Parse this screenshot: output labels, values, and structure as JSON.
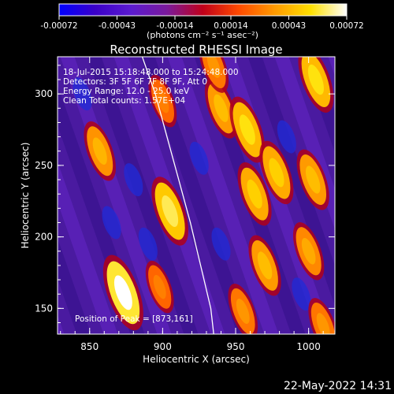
{
  "chart_data": {
    "type": "heatmap",
    "title": "Reconstructed RHESSI Image",
    "xlabel": "Heliocentric X (arcsec)",
    "ylabel": "Heliocentric Y (arcsec)",
    "xlim": [
      828,
      1018
    ],
    "ylim": [
      132,
      326
    ],
    "x_ticks": [
      850,
      900,
      950,
      1000
    ],
    "y_ticks": [
      150,
      200,
      250,
      300
    ],
    "x_tick_labels": [
      "850",
      "900",
      "950",
      "1000"
    ],
    "y_tick_labels": [
      "150",
      "200",
      "250",
      "300"
    ],
    "colorbar": {
      "ticks": [
        -0.00072,
        -0.00043,
        -0.00014,
        0.00014,
        0.00043,
        0.00072
      ],
      "tick_labels": [
        "-0.00072",
        "-0.00043",
        "-0.00014",
        "0.00014",
        "0.00043",
        "0.00072"
      ],
      "units": "(photons cm⁻² s⁻¹ asec⁻²)",
      "range": [
        -0.00072,
        0.00072
      ],
      "colormap": [
        "#0000ff",
        "#3a00c8",
        "#5b1bd0",
        "#7a1a9c",
        "#c0001a",
        "#ff4a00",
        "#ff9a00",
        "#ffe000",
        "#ffffff"
      ]
    },
    "annotations": {
      "time_range": "18-Jul-2015 15:18:48.000 to 15:24:48.000",
      "detectors": "Detectors: 3F 5F 6F 7F 8F 9F, Att 0",
      "energy_range": "Energy Range: 12.0 - 25.0 keV",
      "method_counts": "Clean    Total counts: 1.57E+04",
      "peak_position": "Position of Peak = [873,161]"
    },
    "peak": {
      "x": 873,
      "y": 161
    },
    "hotspots": [
      {
        "x": 873,
        "y": 161,
        "value": 0.00072
      },
      {
        "x": 857,
        "y": 260,
        "value": 0.00043
      },
      {
        "x": 905,
        "y": 218,
        "value": 0.0006
      },
      {
        "x": 898,
        "y": 165,
        "value": 0.0003
      },
      {
        "x": 940,
        "y": 290,
        "value": 0.00045
      },
      {
        "x": 958,
        "y": 275,
        "value": 0.00055
      },
      {
        "x": 963,
        "y": 230,
        "value": 0.0005
      },
      {
        "x": 978,
        "y": 245,
        "value": 0.0005
      },
      {
        "x": 970,
        "y": 180,
        "value": 0.00045
      },
      {
        "x": 955,
        "y": 148,
        "value": 0.00035
      },
      {
        "x": 1005,
        "y": 310,
        "value": 0.00055
      },
      {
        "x": 1003,
        "y": 240,
        "value": 0.00045
      },
      {
        "x": 1000,
        "y": 190,
        "value": 0.0004
      },
      {
        "x": 1010,
        "y": 138,
        "value": 0.00035
      },
      {
        "x": 900,
        "y": 295,
        "value": 0.0003
      },
      {
        "x": 935,
        "y": 320,
        "value": 0.00035
      }
    ],
    "limb_curve": [
      [
        886,
        326
      ],
      [
        895,
        300
      ],
      [
        903,
        270
      ],
      [
        911,
        240
      ],
      [
        919,
        210
      ],
      [
        926,
        180
      ],
      [
        933,
        150
      ],
      [
        935,
        132
      ]
    ]
  },
  "footer": {
    "timestamp": "22-May-2022 14:31"
  }
}
